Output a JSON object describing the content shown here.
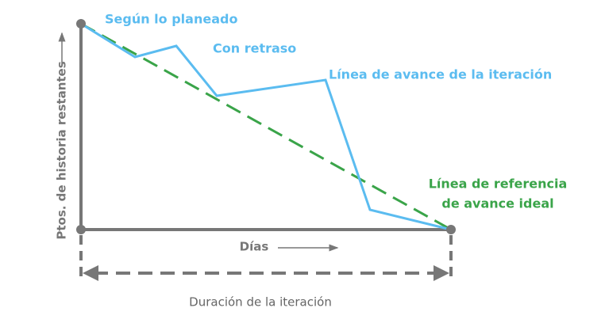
{
  "labels": {
    "on_plan": "Según lo planeado",
    "behind": "Con retraso",
    "progress_line": "Línea de avance de la iteración",
    "ideal_line_1": "Línea de referencia",
    "ideal_line_2": "de avance ideal",
    "y_axis": "Ptos. de historia restantes",
    "x_axis": "Días",
    "duration": "Duración de la iteración"
  }
}
